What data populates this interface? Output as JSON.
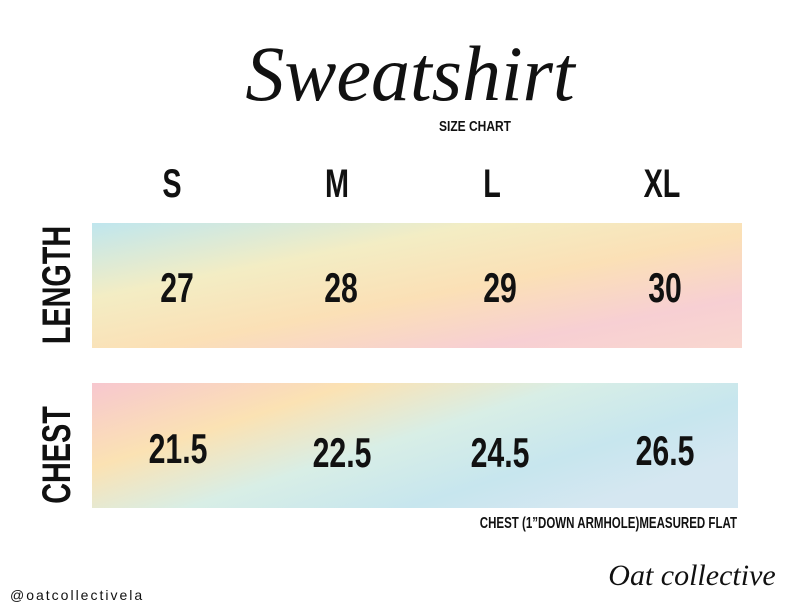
{
  "header": {
    "title": "Sweatshirt",
    "subtitle": "SIZE CHART"
  },
  "table": {
    "columns": [
      "S",
      "M",
      "L",
      "XL"
    ],
    "rows": [
      {
        "label": "LENGTH",
        "values": [
          "27",
          "28",
          "29",
          "30"
        ]
      },
      {
        "label": "CHEST",
        "values": [
          "21.5",
          "22.5",
          "24.5",
          "26.5"
        ]
      }
    ],
    "note": "CHEST (1”DOWN ARMHOLE)MEASURED FLAT"
  },
  "footer": {
    "handle": "@oatcollectivela",
    "brand": "Oat collective"
  }
}
